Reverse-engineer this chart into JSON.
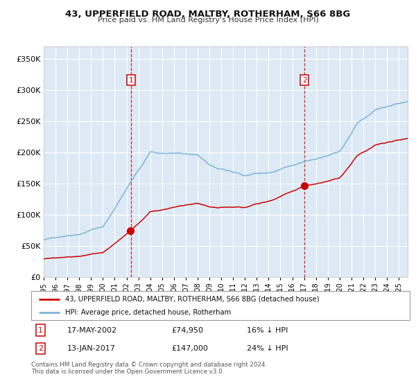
{
  "title": "43, UPPERFIELD ROAD, MALTBY, ROTHERHAM, S66 8BG",
  "subtitle": "Price paid vs. HM Land Registry's House Price Index (HPI)",
  "ylabel_ticks": [
    "£0",
    "£50K",
    "£100K",
    "£150K",
    "£200K",
    "£250K",
    "£300K",
    "£350K"
  ],
  "ytick_values": [
    0,
    50000,
    100000,
    150000,
    200000,
    250000,
    300000,
    350000
  ],
  "ylim": [
    0,
    370000
  ],
  "purchase1_year": 2002.37,
  "purchase2_year": 2017.03,
  "purchase1_price": 74950,
  "purchase2_price": 147000,
  "legend_line1": "43, UPPERFIELD ROAD, MALTBY, ROTHERHAM, S66 8BG (detached house)",
  "legend_line2": "HPI: Average price, detached house, Rotherham",
  "table_row1": [
    "1",
    "17-MAY-2002",
    "£74,950",
    "16% ↓ HPI"
  ],
  "table_row2": [
    "2",
    "13-JAN-2017",
    "£147,000",
    "24% ↓ HPI"
  ],
  "footer": "Contains HM Land Registry data © Crown copyright and database right 2024.\nThis data is licensed under the Open Government Licence v3.0.",
  "hpi_color": "#7ab4d8",
  "property_color": "#cc0000",
  "bg_color": "#ddeaf5",
  "grid_color": "#c8d8e8",
  "marker_color": "#cc0000",
  "vline_color": "#cc0000",
  "box_color": "#cc0000",
  "xlim_start": 1995.0,
  "xlim_end": 2025.75
}
